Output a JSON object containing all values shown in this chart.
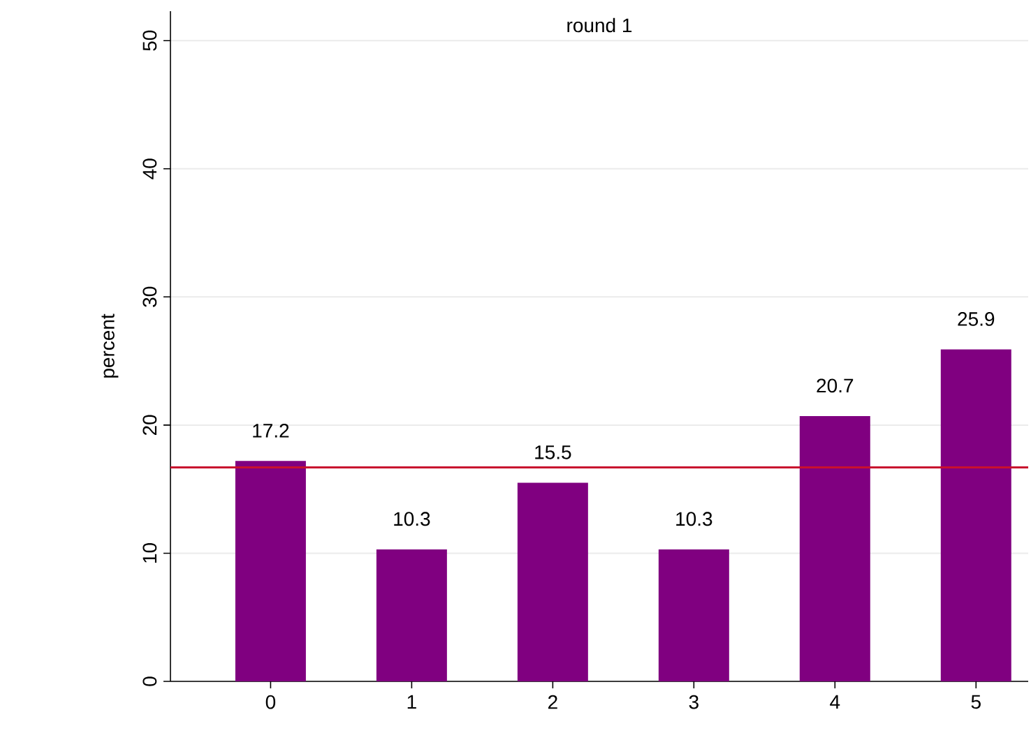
{
  "chart_data": {
    "type": "bar",
    "title": "round 1",
    "ylabel": "percent",
    "categories": [
      "0",
      "1",
      "2",
      "3",
      "4",
      "5"
    ],
    "values": [
      17.2,
      10.3,
      15.5,
      10.3,
      20.7,
      25.9
    ],
    "color": "#800080",
    "ylim": [
      0,
      52.3
    ],
    "yticks": [
      0,
      10,
      20,
      30,
      40,
      50
    ],
    "grid": "y",
    "data_labels": true,
    "ref_lines": [
      {
        "axis": "y",
        "value": 16.7,
        "color": "#c8102e"
      }
    ]
  }
}
